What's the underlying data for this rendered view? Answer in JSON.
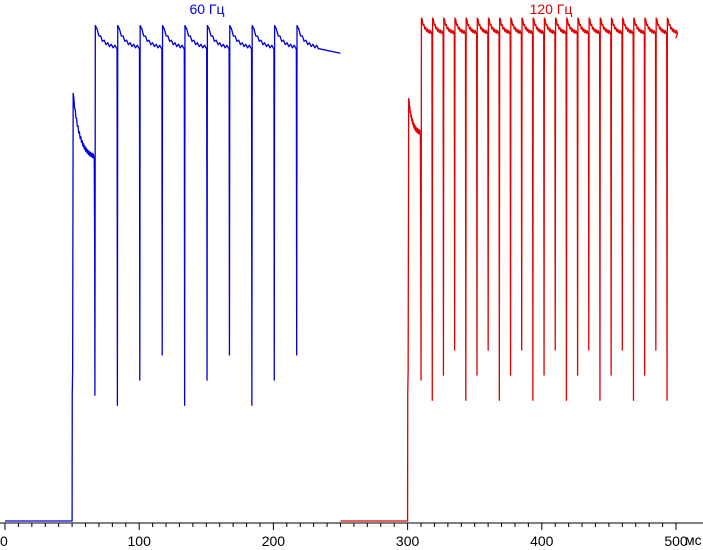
{
  "chart_data": {
    "type": "line",
    "xunit": "мс",
    "xlim": [
      0,
      500
    ],
    "ylim": [
      0,
      1
    ],
    "x_ticks": [
      0,
      100,
      200,
      300,
      400,
      500
    ],
    "y_ticks": [],
    "grid": false,
    "series": [
      {
        "name": "60 Гц",
        "color": "#0000dd",
        "x_start": 0,
        "x_end": 250,
        "baseline": 0.0,
        "rise_time": 50,
        "initial_peak": 0.85,
        "initial_settle": 0.72,
        "first_dip": 0.25,
        "refresh_period_ms": 16.7,
        "pulses_start": 67,
        "pulse_count": 10,
        "pulse_peak": 0.985,
        "pulse_settle": 0.94,
        "pulse_dip": 0.28
      },
      {
        "name": "120 Гц",
        "color": "#e00000",
        "x_start": 250,
        "x_end": 500,
        "baseline": 0.0,
        "rise_time": 300,
        "initial_peak": 0.84,
        "initial_settle": 0.77,
        "first_dip": 0.28,
        "refresh_period_ms": 8.33,
        "pulses_start": 310,
        "pulse_count": 23,
        "pulse_peak": 1.0,
        "pulse_settle": 0.97,
        "pulse_dip": 0.29
      }
    ]
  }
}
